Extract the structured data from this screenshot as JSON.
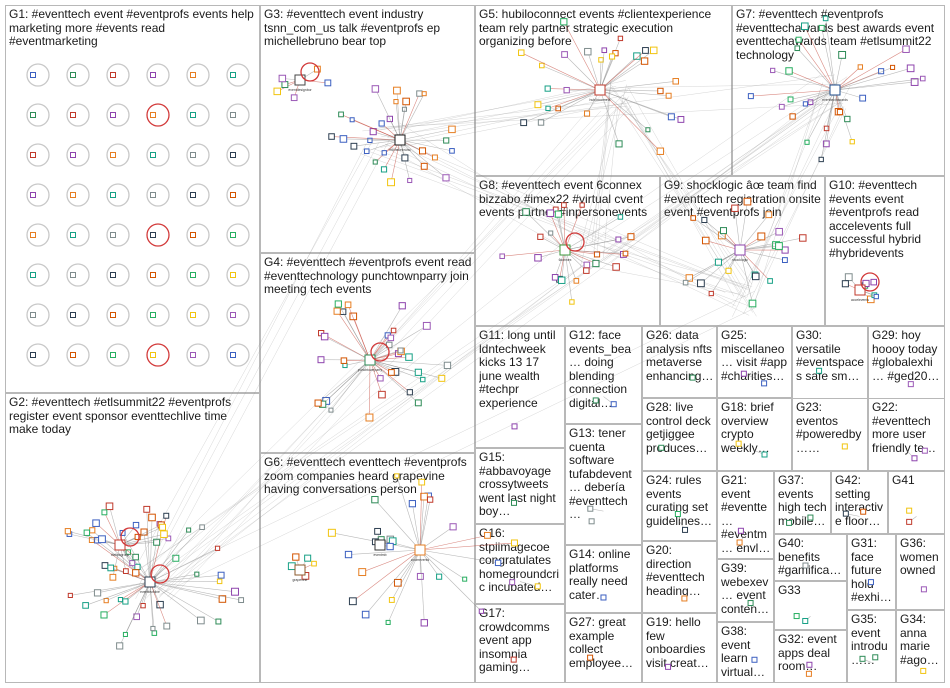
{
  "graph": {
    "groups": [
      {
        "id": "G1",
        "label": "G1: #eventtech event #eventprofs events help marketing more #events read #eventmarketing"
      },
      {
        "id": "G2",
        "label": "G2: #eventtech #etlsummit22 #eventprofs register event sponsor eventtechlive time make today"
      },
      {
        "id": "G3",
        "label": "G3: #eventtech event industry tsnn_com_us talk #eventprofs ep michellebruno bear top"
      },
      {
        "id": "G4",
        "label": "G4: #eventtech #eventprofs event read #eventtechnology punchtownparry join meeting tech events"
      },
      {
        "id": "G5",
        "label": "G5: hubiloconnect events #clientexperience team rely partner strategic execution organizing before"
      },
      {
        "id": "G6",
        "label": "G6: #eventtech eventtech #eventprofs zoom companies heard grapevine having conversations person"
      },
      {
        "id": "G7",
        "label": "G7: #eventtech #eventprofs #eventtechawards best awards event eventtechawards team #etlsummit22 technology"
      },
      {
        "id": "G8",
        "label": "G8: #eventtech event 6connex bizzabo #imex22 #virtual cvent events partner #inpersonevents"
      },
      {
        "id": "G9",
        "label": "G9: shocklogic âœ team find #eventtech registration onsite event #eventprofs join"
      },
      {
        "id": "G10",
        "label": "G10: #eventtech #events event #eventprofs read accelevents full successful hybrid #hybridevents"
      },
      {
        "id": "G11",
        "label": "G11: long until ldntechweek kicks 13 17 june wealth #techpr experience"
      },
      {
        "id": "G12",
        "label": "G12: face events_bea… doing blending connection digital…"
      },
      {
        "id": "G13",
        "label": "G13: tener cuenta software tufabdevent… debería #eventtech…"
      },
      {
        "id": "G14",
        "label": "G14: online platforms really need cater attendees disability…"
      },
      {
        "id": "G15",
        "label": "G15: #abbavoyage crossytweets went last night boy impressed…"
      },
      {
        "id": "G16",
        "label": "G16: stpiimagecoe congratulates homegroundcric incubated…"
      },
      {
        "id": "G17",
        "label": "G17: crowdcomms event app insomnia gaming festival…"
      },
      {
        "id": "G18",
        "label": "G18: brief overview crypto weekly current market…"
      },
      {
        "id": "G19",
        "label": "G19: hello few onboardies visit create profile…"
      },
      {
        "id": "G20",
        "label": "G20: direction #eventtech heading towards front row seat…"
      },
      {
        "id": "G21",
        "label": "G21: event #eventte… #eventm… envlor learn…"
      },
      {
        "id": "G22",
        "label": "G22: #eventtech more user friendly team powerful…"
      },
      {
        "id": "G23",
        "label": "G23: eventos #poweredby… #eventtech #eventprofs #expertise…"
      },
      {
        "id": "G24",
        "label": "G24: rules events curating set guidelines speaking…"
      },
      {
        "id": "G25",
        "label": "G25: miscellaneo… visit #app #charities #business…"
      },
      {
        "id": "G26",
        "label": "G26: data analysis nfts metaverse enhancing online offline…"
      },
      {
        "id": "G27",
        "label": "G27: great example collect employee generated…"
      },
      {
        "id": "G28",
        "label": "G28: live control deck getjiggee produces asmba…"
      },
      {
        "id": "G29",
        "label": "G29: hoy hoooy today #globalexhi… #ged2022 #eventprofs…"
      },
      {
        "id": "G30",
        "label": "G30: versatile #eventspaces safe smart events choose 19…"
      },
      {
        "id": "G31",
        "label": "G31: face future hold #exhibi…"
      },
      {
        "id": "G32",
        "label": "G32: event apps deal room…"
      },
      {
        "id": "G33",
        "label": "G33"
      },
      {
        "id": "G34",
        "label": "G34: anna marie #agorify #eventi…"
      },
      {
        "id": "G35",
        "label": "G35: event introdu… 'where people…"
      },
      {
        "id": "G36",
        "label": "G36: women owned"
      },
      {
        "id": "G37",
        "label": "G37: events high tech mobile…"
      },
      {
        "id": "G38",
        "label": "G38: event learn virtual…"
      },
      {
        "id": "G39",
        "label": "G39: webexev… event content…"
      },
      {
        "id": "G40",
        "label": "G40: benefits #gamification #virtualeven…"
      },
      {
        "id": "G41",
        "label": "G41"
      },
      {
        "id": "G42",
        "label": "G42: setting interactive floor…"
      }
    ],
    "node_labels": [
      "eventdesignbor",
      "missbjalesbrd",
      "michellebruno",
      "tsnn_com_us",
      "sherrisadow",
      "nextevents",
      "ryanrichmn",
      "edviadecyw",
      "hubiloconnect",
      "bizzabo",
      "6connex",
      "cvent",
      "shocklogic",
      "punchtownparry",
      "accelevents",
      "eventtechawards",
      "eventtechlive",
      "thelinkgroup",
      "eventtechlaw",
      "virtualeventpro",
      "brunettechicken",
      "zoomevents",
      "eventmb",
      "grapevine"
    ],
    "colors": {
      "border": "#b8b8b8",
      "edge": "#8a8a8a",
      "edge_red": "#c0392b",
      "self_loop": "#d23a3a",
      "label_text": "#1a1a1a"
    }
  }
}
